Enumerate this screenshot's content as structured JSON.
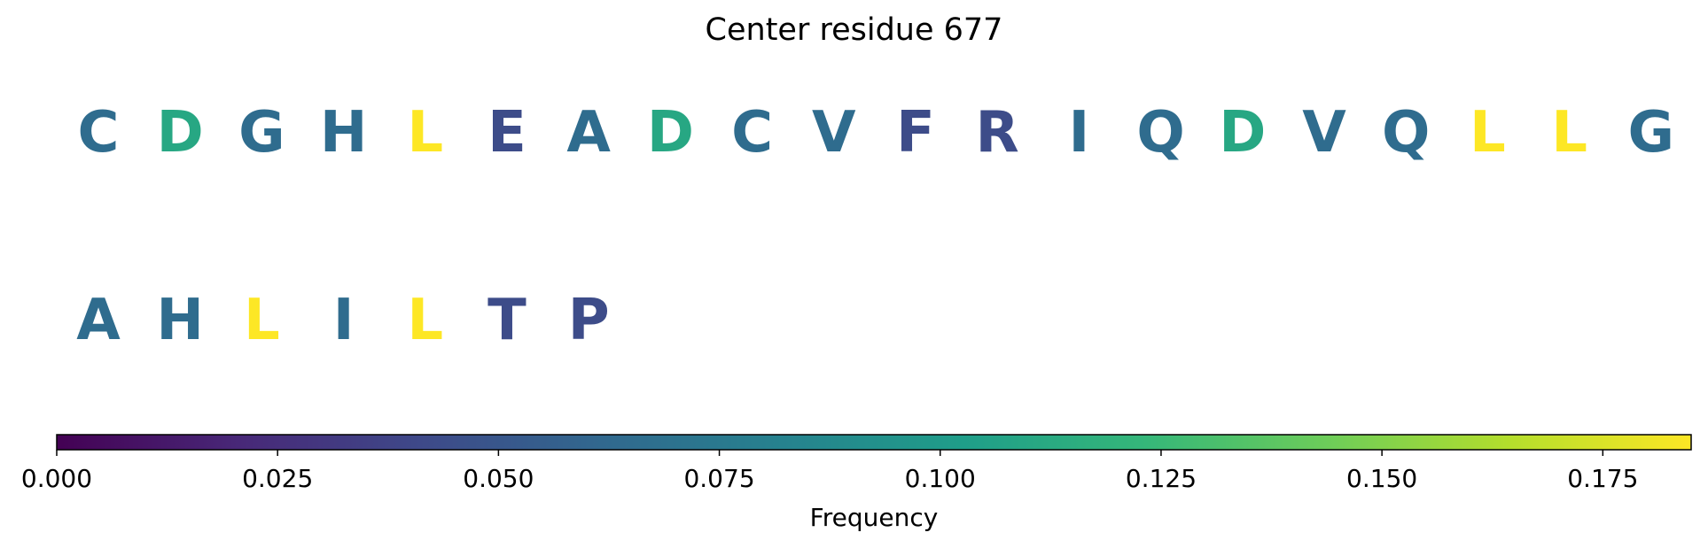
{
  "title": "Center residue 677",
  "chart_data": {
    "type": "heatmap",
    "title": "Center residue 677",
    "residues": [
      {
        "letter": "C",
        "frequency": 0.065
      },
      {
        "letter": "D",
        "frequency": 0.11
      },
      {
        "letter": "G",
        "frequency": 0.065
      },
      {
        "letter": "H",
        "frequency": 0.065
      },
      {
        "letter": "L",
        "frequency": 0.185
      },
      {
        "letter": "E",
        "frequency": 0.043
      },
      {
        "letter": "A",
        "frequency": 0.065
      },
      {
        "letter": "D",
        "frequency": 0.11
      },
      {
        "letter": "C",
        "frequency": 0.065
      },
      {
        "letter": "V",
        "frequency": 0.065
      },
      {
        "letter": "F",
        "frequency": 0.043
      },
      {
        "letter": "R",
        "frequency": 0.043
      },
      {
        "letter": "I",
        "frequency": 0.065
      },
      {
        "letter": "Q",
        "frequency": 0.065
      },
      {
        "letter": "D",
        "frequency": 0.11
      },
      {
        "letter": "V",
        "frequency": 0.065
      },
      {
        "letter": "Q",
        "frequency": 0.065
      },
      {
        "letter": "L",
        "frequency": 0.185
      },
      {
        "letter": "L",
        "frequency": 0.185
      },
      {
        "letter": "G",
        "frequency": 0.065
      },
      {
        "letter": "A",
        "frequency": 0.065
      },
      {
        "letter": "H",
        "frequency": 0.065
      },
      {
        "letter": "L",
        "frequency": 0.185
      },
      {
        "letter": "I",
        "frequency": 0.065
      },
      {
        "letter": "L",
        "frequency": 0.185
      },
      {
        "letter": "T",
        "frequency": 0.043
      },
      {
        "letter": "P",
        "frequency": 0.043
      }
    ],
    "colorbar": {
      "label": "Frequency",
      "range": [
        0,
        0.185
      ],
      "colormap": "viridis",
      "ticks": [
        0,
        0.025,
        0.05,
        0.075,
        0.1,
        0.125,
        0.15,
        0.175
      ],
      "tick_labels": [
        "0.000",
        "0.025",
        "0.050",
        "0.075",
        "0.100",
        "0.125",
        "0.150",
        "0.175"
      ]
    }
  }
}
